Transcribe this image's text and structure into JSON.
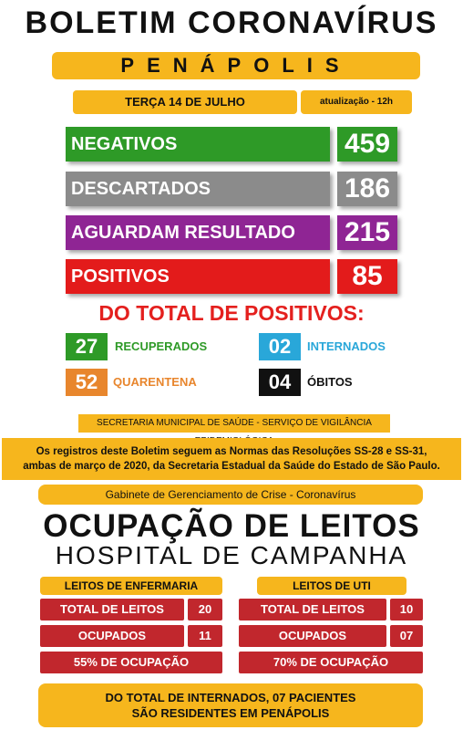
{
  "header": {
    "title": "BOLETIM CORONAVÍRUS",
    "city": "PENÁPOLIS",
    "date": "TERÇA 14 DE JULHO",
    "update": "atualização - 12h"
  },
  "stats": [
    {
      "label": "NEGATIVOS",
      "value": "459",
      "color": "#2e9a27"
    },
    {
      "label": "DESCARTADOS",
      "value": "186",
      "color": "#8b8b8b"
    },
    {
      "label": "AGUARDAM RESULTADO",
      "value": "215",
      "color": "#8f2594"
    },
    {
      "label": "POSITIVOS",
      "value": "85",
      "color": "#e31b1b"
    }
  ],
  "positives": {
    "heading": "DO TOTAL DE POSITIVOS:",
    "recuperados": {
      "value": "27",
      "label": "RECUPERADOS",
      "color": "#2e9a27"
    },
    "internados": {
      "value": "02",
      "label": "INTERNADOS",
      "color": "#29a7d9"
    },
    "quarentena": {
      "value": "52",
      "label": "QUARENTENA",
      "color": "#e8862d"
    },
    "obitos": {
      "value": "04",
      "label": "ÓBITOS",
      "color": "#111111"
    }
  },
  "secretaria": "SECRETARIA MUNICIPAL DE SAÚDE - SERVIÇO DE VIGILÂNCIA EPIDEMIOLÓGICA",
  "notice": {
    "line1": "Os registros deste Boletim seguem as Normas das Resoluções SS-28 e SS-31,",
    "line2": "ambas de março de 2020, da Secretaria Estadual da Saúde do Estado de São Paulo."
  },
  "gabinete": "Gabinete de Gerenciamento de Crise - Coronavírus",
  "occupancy": {
    "title": "OCUPAÇÃO DE LEITOS",
    "subtitle": "HOSPITAL DE CAMPANHA",
    "enfermaria": {
      "heading": "LEITOS DE ENFERMARIA",
      "total_label": "TOTAL DE LEITOS",
      "total_value": "20",
      "ocupados_label": "OCUPADOS",
      "ocupados_value": "11",
      "percent_text": "55% DE OCUPAÇÃO",
      "percent": 55
    },
    "uti": {
      "heading": "LEITOS DE UTI",
      "total_label": "TOTAL DE LEITOS",
      "total_value": "10",
      "ocupados_label": "OCUPADOS",
      "ocupados_value": "07",
      "percent_text": "70% DE OCUPAÇÃO",
      "percent": 70
    }
  },
  "footer": {
    "line1": "DO TOTAL DE INTERNADOS, 07 PACIENTES",
    "line2": "SÃO RESIDENTES EM PENÁPOLIS"
  }
}
